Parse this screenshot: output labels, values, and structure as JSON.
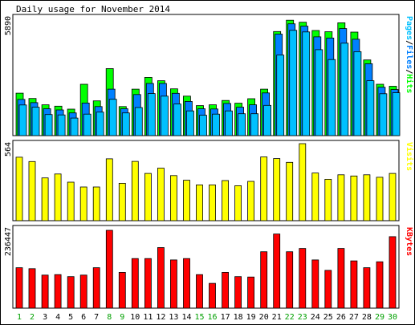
{
  "chart_data": {
    "type": "bar",
    "title": "Daily usage for November 2014",
    "days": [
      "1",
      "2",
      "3",
      "4",
      "5",
      "6",
      "7",
      "8",
      "9",
      "10",
      "11",
      "12",
      "13",
      "14",
      "15",
      "16",
      "17",
      "18",
      "19",
      "20",
      "21",
      "22",
      "23",
      "24",
      "25",
      "26",
      "27",
      "28",
      "29",
      "30"
    ],
    "weekend_days": [
      "1",
      "2",
      "8",
      "9",
      "15",
      "16",
      "22",
      "23",
      "29",
      "30"
    ],
    "panels": [
      {
        "id": "pages-files-hits",
        "ymax_label": "5890",
        "ylim": [
          0,
          5890
        ],
        "legend": [
          "Pages",
          "Files",
          "Hits"
        ],
        "series": [
          {
            "name": "Hits",
            "color": "#00ff00",
            "values": [
              2150,
              1880,
              1560,
              1490,
              1340,
              2600,
              1760,
              3390,
              1470,
              2350,
              2950,
              2780,
              2370,
              2000,
              1520,
              1560,
              1780,
              1640,
              1870,
              2350,
              5270,
              5840,
              5740,
              5320,
              5260,
              5710,
              5240,
              3830,
              2600,
              2500
            ]
          },
          {
            "name": "Files",
            "color": "#0080ff",
            "values": [
              1830,
              1670,
              1360,
              1300,
              1150,
              1650,
              1470,
              2350,
              1360,
              2080,
              2640,
              2640,
              2140,
              1730,
              1360,
              1350,
              1630,
              1440,
              1560,
              2160,
              5140,
              5660,
              5540,
              5000,
              4940,
              5420,
              4880,
              3640,
              2450,
              2330
            ]
          },
          {
            "name": "Pages",
            "color": "#00c0ff",
            "values": [
              1550,
              1440,
              1070,
              1050,
              890,
              1090,
              1190,
              1840,
              1150,
              1420,
              2130,
              2000,
              1600,
              1250,
              1030,
              1090,
              1250,
              1110,
              1110,
              1530,
              4080,
              5330,
              5250,
              4350,
              3850,
              4680,
              4250,
              2780,
              2120,
              2170
            ]
          }
        ]
      },
      {
        "id": "visits",
        "ymax_label": "564",
        "ylim": [
          0,
          564
        ],
        "legend": [
          "Visits"
        ],
        "series": [
          {
            "name": "Visits",
            "color": "#ffff00",
            "values": [
              465,
              433,
              313,
              342,
              282,
              247,
              247,
              453,
              274,
              434,
              346,
              385,
              330,
              296,
              262,
              262,
              294,
              256,
              288,
              467,
              455,
              427,
              564,
              349,
              303,
              336,
              327,
              336,
              318,
              346
            ]
          }
        ]
      },
      {
        "id": "kbytes",
        "ymax_label": "236447",
        "ylim": [
          0,
          236447
        ],
        "legend": [
          "KBytes"
        ],
        "series": [
          {
            "name": "KBytes",
            "color": "#ff0000",
            "values": [
              122800,
              120000,
              100400,
              101800,
              95800,
              100400,
              122800,
              236447,
              108600,
              150600,
              150600,
              184100,
              146400,
              150600,
              101800,
              75300,
              108600,
              95800,
              94600,
              171400,
              225300,
              171400,
              181300,
              146400,
              114900,
              181300,
              143600,
              122800,
              140800,
              217100
            ]
          }
        ]
      }
    ]
  }
}
